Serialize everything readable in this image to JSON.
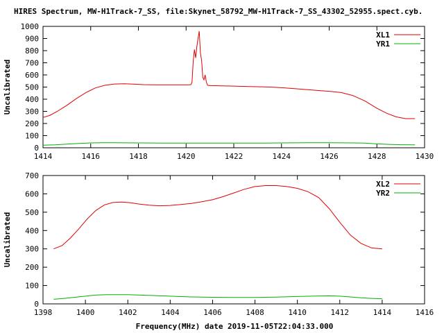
{
  "title": "HIRES Spectrum, MW-H1Track-7_SS, file:Skynet_58792_MW-H1Track-7_SS_43302_52955.spect.cyb.",
  "xlabel": "Frequency(MHz) date 2019-11-05T22:04:33.000",
  "chart_data": [
    {
      "type": "line",
      "ylabel": "Uncalibrated",
      "xlim": [
        1414,
        1430
      ],
      "ylim": [
        0,
        1000
      ],
      "xticks": [
        "1414",
        "1416",
        "1418",
        "1420",
        "1422",
        "1424",
        "1426",
        "1428",
        "1430"
      ],
      "yticks": [
        "0",
        "100",
        "200",
        "300",
        "400",
        "500",
        "600",
        "700",
        "800",
        "900",
        "1000"
      ],
      "legend": "top-right",
      "series": [
        {
          "name": "XL1",
          "color": "#e00000",
          "x": [
            1414.0,
            1414.3,
            1414.6,
            1415.0,
            1415.4,
            1415.8,
            1416.2,
            1416.6,
            1417.0,
            1417.4,
            1417.8,
            1418.2,
            1418.6,
            1419.0,
            1419.4,
            1419.8,
            1420.1,
            1420.2,
            1420.25,
            1420.3,
            1420.35,
            1420.4,
            1420.45,
            1420.5,
            1420.55,
            1420.6,
            1420.65,
            1420.7,
            1420.75,
            1420.8,
            1420.85,
            1420.9,
            1421.0,
            1421.5,
            1422.0,
            1422.5,
            1423.0,
            1423.5,
            1424.0,
            1424.5,
            1425.0,
            1425.5,
            1426.0,
            1426.5,
            1427.0,
            1427.5,
            1428.0,
            1428.4,
            1428.8,
            1429.2,
            1429.6
          ],
          "y": [
            250,
            268,
            300,
            350,
            405,
            455,
            493,
            515,
            525,
            527,
            524,
            520,
            518,
            518,
            518,
            518,
            518,
            520,
            540,
            720,
            810,
            740,
            830,
            900,
            960,
            780,
            720,
            580,
            560,
            600,
            540,
            515,
            512,
            510,
            508,
            505,
            503,
            500,
            495,
            488,
            480,
            472,
            465,
            455,
            430,
            385,
            325,
            285,
            255,
            240,
            240
          ]
        },
        {
          "name": "YR1",
          "color": "#00b000",
          "x": [
            1414.0,
            1414.5,
            1415.0,
            1415.5,
            1416.0,
            1416.5,
            1417.0,
            1418.0,
            1419.0,
            1420.0,
            1421.0,
            1422.0,
            1423.0,
            1424.0,
            1425.0,
            1426.0,
            1427.0,
            1427.5,
            1428.0,
            1428.5,
            1429.0,
            1429.6
          ],
          "y": [
            22,
            24,
            30,
            36,
            40,
            42,
            42,
            40,
            38,
            38,
            38,
            38,
            38,
            40,
            42,
            42,
            40,
            38,
            32,
            28,
            25,
            24
          ]
        }
      ]
    },
    {
      "type": "line",
      "ylabel": "Uncalibrated",
      "xlim": [
        1398,
        1416
      ],
      "ylim": [
        0,
        700
      ],
      "xticks": [
        "1398",
        "1400",
        "1402",
        "1404",
        "1406",
        "1408",
        "1410",
        "1412",
        "1414",
        "1416"
      ],
      "yticks": [
        "0",
        "100",
        "200",
        "300",
        "400",
        "500",
        "600",
        "700"
      ],
      "legend": "top-right",
      "series": [
        {
          "name": "XL2",
          "color": "#e00000",
          "x": [
            1398.5,
            1398.9,
            1399.3,
            1399.7,
            1400.1,
            1400.5,
            1400.9,
            1401.3,
            1401.7,
            1402.1,
            1402.5,
            1403.0,
            1403.5,
            1404.0,
            1404.5,
            1405.0,
            1405.5,
            1406.0,
            1406.5,
            1407.0,
            1407.5,
            1408.0,
            1408.5,
            1409.0,
            1409.5,
            1410.0,
            1410.5,
            1411.0,
            1411.5,
            1412.0,
            1412.5,
            1413.0,
            1413.5,
            1414.0
          ],
          "y": [
            300,
            318,
            360,
            410,
            465,
            510,
            540,
            553,
            555,
            552,
            545,
            538,
            535,
            537,
            542,
            548,
            557,
            568,
            585,
            605,
            625,
            640,
            645,
            645,
            640,
            630,
            612,
            580,
            520,
            445,
            375,
            330,
            305,
            300
          ]
        },
        {
          "name": "YR2",
          "color": "#00b000",
          "x": [
            1398.5,
            1399.0,
            1399.5,
            1400.0,
            1400.5,
            1401.0,
            1402.0,
            1403.0,
            1404.0,
            1405.0,
            1406.0,
            1407.0,
            1408.0,
            1409.0,
            1410.0,
            1411.0,
            1411.5,
            1412.0,
            1412.5,
            1413.0,
            1413.5,
            1414.0
          ],
          "y": [
            25,
            30,
            36,
            42,
            48,
            50,
            50,
            46,
            42,
            38,
            36,
            35,
            35,
            37,
            40,
            43,
            44,
            42,
            38,
            33,
            30,
            28
          ]
        }
      ]
    }
  ]
}
